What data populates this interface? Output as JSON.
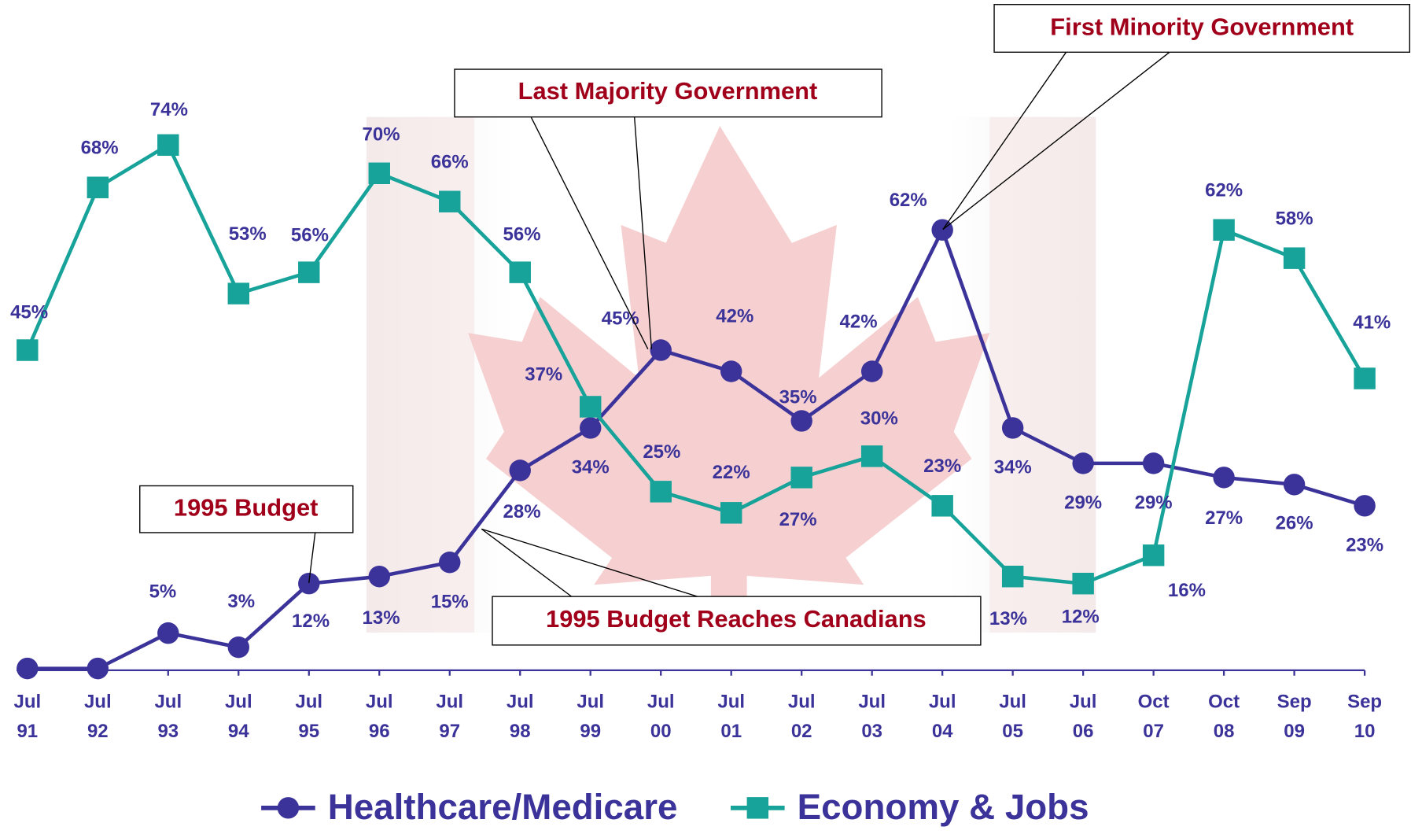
{
  "chart_data": {
    "type": "line",
    "categories": [
      [
        "Jul",
        "91"
      ],
      [
        "Jul",
        "92"
      ],
      [
        "Jul",
        "93"
      ],
      [
        "Jul",
        "94"
      ],
      [
        "Jul",
        "95"
      ],
      [
        "Jul",
        "96"
      ],
      [
        "Jul",
        "97"
      ],
      [
        "Jul",
        "98"
      ],
      [
        "Jul",
        "99"
      ],
      [
        "Jul",
        "00"
      ],
      [
        "Jul",
        "01"
      ],
      [
        "Jul",
        "02"
      ],
      [
        "Jul",
        "03"
      ],
      [
        "Jul",
        "04"
      ],
      [
        "Jul",
        "05"
      ],
      [
        "Jul",
        "06"
      ],
      [
        "Oct",
        "07"
      ],
      [
        "Oct",
        "08"
      ],
      [
        "Sep",
        "09"
      ],
      [
        "Sep",
        "10"
      ]
    ],
    "series": [
      {
        "name": "Healthcare/Medicare",
        "color": "#3b3399",
        "marker": "circle",
        "values": [
          0,
          0,
          5,
          3,
          12,
          13,
          15,
          28,
          34,
          45,
          42,
          35,
          42,
          62,
          34,
          29,
          29,
          27,
          26,
          23
        ],
        "value_labels": [
          null,
          null,
          "5%",
          "3%",
          "12%",
          "13%",
          "15%",
          "28%",
          "34%",
          "45%",
          "42%",
          "35%",
          "42%",
          "62%",
          "34%",
          "29%",
          "29%",
          "27%",
          "26%",
          "23%"
        ]
      },
      {
        "name": "Economy & Jobs",
        "color": "#17a39a",
        "marker": "square",
        "values": [
          45,
          68,
          74,
          53,
          56,
          70,
          66,
          56,
          37,
          25,
          22,
          27,
          30,
          23,
          13,
          12,
          16,
          62,
          58,
          41
        ],
        "value_labels": [
          "45%",
          "68%",
          "74%",
          "53%",
          "56%",
          "70%",
          "66%",
          "56%",
          "37%",
          "25%",
          "22%",
          "27%",
          "30%",
          "23%",
          "13%",
          "12%",
          "16%",
          "62%",
          "58%",
          "41%"
        ]
      }
    ],
    "ylim": [
      0,
      94.5
    ],
    "annotations": [
      "1995 Budget",
      "Last Majority Government",
      "First Minority Government",
      "1995 Budget Reaches Canadians"
    ]
  }
}
